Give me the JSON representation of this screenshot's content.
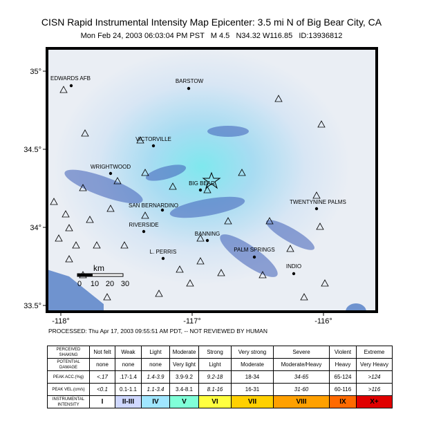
{
  "title": "CISN Rapid Instrumental Intensity Map Epicenter: 3.5 mi N of Big Bear City, CA",
  "subtitle": "Mon Feb 24, 2003 06:03:04 PM PST   M 4.5   N34.32 W116.85   ID:13936812",
  "map": {
    "lat_ticks": [
      {
        "value": 35,
        "label": "35°"
      },
      {
        "value": 34.5,
        "label": "34.5°"
      },
      {
        "value": 34,
        "label": "34°"
      },
      {
        "value": 33.5,
        "label": "33.5°"
      }
    ],
    "lon_ticks": [
      {
        "value": -118,
        "label": "-118°"
      },
      {
        "value": -117,
        "label": "-117°"
      },
      {
        "value": -116,
        "label": "-116°"
      }
    ],
    "cities": [
      "EDWARDS AFB",
      "BARSTOW",
      "VICTORVILLE",
      "WRIGHTWOOD",
      "BIG BEAR",
      "TWENTYNINE PALMS",
      "SAN BERNARDINO",
      "RIVERSIDE",
      "BANNING",
      "L. PERRIS",
      "PALM SPRINGS",
      "INDIO"
    ],
    "scale_bar": {
      "unit": "km",
      "ticks": [
        "0",
        "10",
        "20",
        "30"
      ]
    },
    "note": "PROCESSED: Thu Apr 17, 2003 09:55:51 AM PDT, -- NOT REVIEWED BY HUMAN"
  },
  "legend": {
    "rows": [
      [
        "PERCEIVED SHAKING",
        "Not felt",
        "Weak",
        "Light",
        "Moderate",
        "Strong",
        "Very strong",
        "Severe",
        "Violent",
        "Extreme"
      ],
      [
        "POTENTIAL DAMAGE",
        "none",
        "none",
        "none",
        "Very light",
        "Light",
        "Moderate",
        "Moderate/Heavy",
        "Heavy",
        "Very Heavy"
      ],
      [
        "PEAK ACC.(%g)",
        "<.17",
        ".17-1.4",
        "1.4-3.9",
        "3.9-9.2",
        "9.2-18",
        "18-34",
        "34-65",
        "65-124",
        ">124"
      ],
      [
        "PEAK VEL.(cm/s)",
        "<0.1",
        "0.1-1.1",
        "1.1-3.4",
        "3.4-8.1",
        "8.1-16",
        "16-31",
        "31-60",
        "60-116",
        ">116"
      ],
      [
        "INSTRUMENTAL INTENSITY",
        "I",
        "II-III",
        "IV",
        "V",
        "VI",
        "VII",
        "VIII",
        "IX",
        "X+"
      ]
    ],
    "intensity_colors": [
      "#ffffff",
      "#cfd8ff",
      "#a0e6ff",
      "#80ffd8",
      "#ffff40",
      "#ffd000",
      "#ffa000",
      "#ff6a00",
      "#e00000"
    ]
  }
}
